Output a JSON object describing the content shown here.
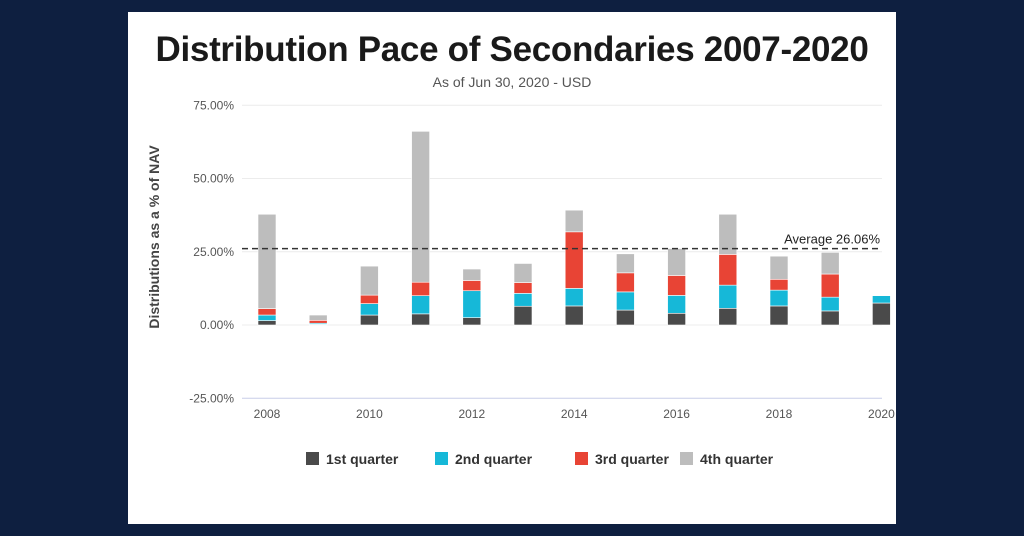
{
  "chart_data": {
    "type": "bar",
    "stacked": true,
    "title": "Distribution Pace of Secondaries 2007-2020",
    "subtitle": "As of Jun 30, 2020 - USD",
    "ylabel": "Distributions as a % of NAV",
    "xlabel": "",
    "ylim": [
      -25,
      75
    ],
    "yticks": [
      "75.00%",
      "50.00%",
      "25.00%",
      "0.00%",
      "-25.00%"
    ],
    "ytick_values": [
      75,
      50,
      25,
      0,
      -25
    ],
    "categories": [
      2008,
      2009,
      2010,
      2011,
      2012,
      2013,
      2014,
      2015,
      2016,
      2017,
      2018,
      2019,
      2020
    ],
    "xticks": [
      "2008",
      "2010",
      "2012",
      "2014",
      "2016",
      "2018",
      "2020"
    ],
    "grid": true,
    "legend_position": "bottom",
    "series": [
      {
        "name": "1st quarter",
        "color": "#4a4a4a",
        "values": [
          1.5,
          0.2,
          3.4,
          3.8,
          2.5,
          6.4,
          6.5,
          5.1,
          4.0,
          5.7,
          6.5,
          4.8,
          7.5
        ]
      },
      {
        "name": "2nd quarter",
        "color": "#16b8d8",
        "values": [
          1.9,
          0.4,
          3.9,
          6.2,
          9.2,
          4.4,
          6.0,
          6.2,
          6.1,
          7.9,
          5.4,
          4.7,
          2.5
        ]
      },
      {
        "name": "3rd quarter",
        "color": "#e84435",
        "values": [
          2.2,
          1.0,
          2.9,
          4.6,
          3.5,
          3.7,
          19.3,
          6.5,
          6.8,
          10.5,
          3.7,
          7.9,
          0
        ]
      },
      {
        "name": "4th quarter",
        "color": "#bdbdbd",
        "values": [
          32.2,
          1.8,
          9.9,
          51.5,
          3.9,
          6.5,
          7.4,
          6.5,
          9.2,
          13.7,
          7.9,
          7.4,
          0
        ]
      }
    ],
    "average": {
      "value": 26.06,
      "label": "Average 26.06%"
    }
  }
}
